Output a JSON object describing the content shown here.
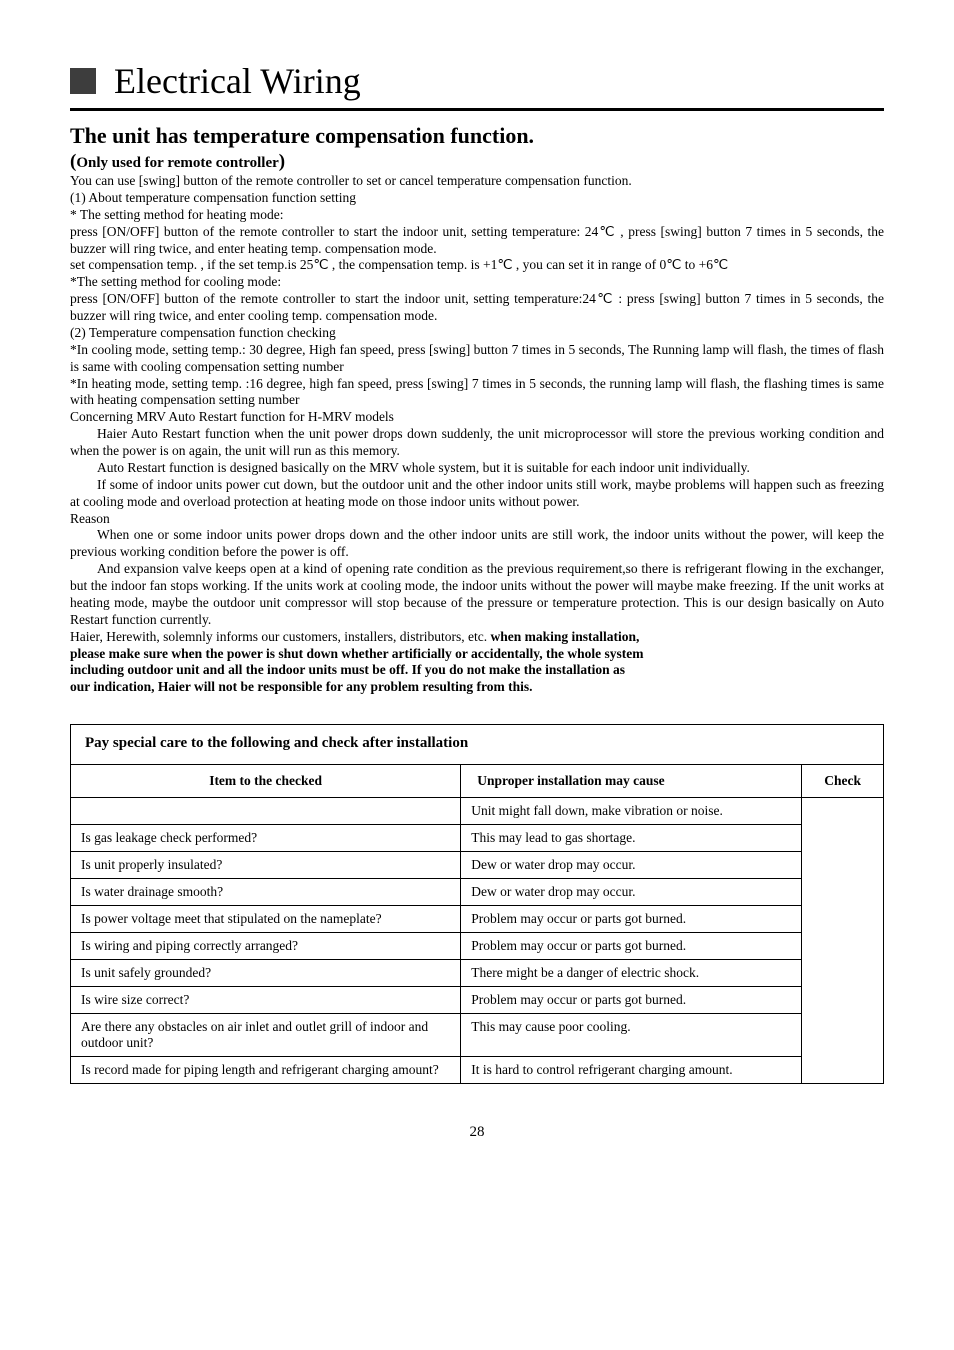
{
  "heading": "Electrical Wiring",
  "subheading": "The unit has temperature compensation  function.",
  "subnote_open": "(",
  "subnote_text": "Only used for remote controller",
  "subnote_close": ")",
  "para": {
    "p01": "You  can  use  [swing]  button of the  remote controller to set or cancel temperature  compensation   function.",
    "p02": " (1)  About  temperature compensation  function  setting",
    "p03": "* The  setting  method for heating   mode:",
    "p04": "press [ON/OFF] button of the  remote  controller to start the indoor unit, setting temperature: 24℃ , press [swing]  button 7 times in 5 seconds, the buzzer will ring  twice, and enter heating temp. compensation mode.",
    "p05": "set compensation temp. , if the set temp.is 25℃ , the compensation temp. is +1℃ , you can set it in range of 0℃  to +6℃",
    "p06": "*The  setting  method  for cooling mode:",
    "p07": "press [ON/OFF]  button  of  the  remote  controller to start  the indoor unit, setting temperature:24℃ : press [swing] button 7 times in 5 seconds, the buzzer will ring twice, and enter cooling temp. compensation mode.",
    "p08": "(2)  Temperature  compensation  function  checking",
    "p09": "*In cooling mode, setting temp.: 30 degree, High fan speed, press [swing] button 7 times in 5 seconds, The Running lamp will flash, the times of flash is same with cooling compensation setting number",
    "p10": "*In heating mode, setting temp. :16 degree, high fan speed, press [swing] 7 times in 5 seconds, the running lamp will flash, the flashing times is same with heating compensation setting number",
    "p11": "Concerning MRV Auto Restart function for H-MRV models",
    "p12": "Haier Auto Restart function when the unit power drops down suddenly, the unit microprocessor will store the previous working condition and when the power is on again, the unit will run as this memory.",
    "p13": "Auto Restart function is designed basically on the MRV whole system, but it is suitable for each indoor unit individually.",
    "p14": "If some of indoor units power cut down, but the outdoor unit and the other indoor units still work, maybe problems will happen such as freezing at cooling mode and overload protection at heating mode on those indoor units without power.",
    "p15": "Reason",
    "p16": "When one or some indoor units power drops down and the other indoor units are still work, the indoor units without the power, will keep the previous working condition before the power is off.",
    "p17": "And expansion valve keeps open at a kind of opening rate condition as the previous requirement,so there is refrigerant flowing in the exchanger, but the indoor fan stops working. If the units work at cooling mode, the indoor units without the power will maybe make freezing. If the unit works at heating mode, maybe the outdoor unit compressor will stop because of the pressure or temperature protection. This is our design basically on Auto Restart function currently.",
    "p18a": "Haier, Herewith, solemnly informs our customers, installers, distributors, etc. ",
    "p18b": "when making installation,",
    "p19": "please make sure when the power is shut down whether artificially or accidentally, the whole system",
    "p20": " including outdoor unit and all the indoor units must be off. If you do not make the installation as",
    "p21": "our indication, Haier will not be responsible for any problem resulting from this."
  },
  "table": {
    "caption": "Pay special care to the following and check after installation",
    "head_item": "Item to the checked",
    "head_cause": "Unproper installation may cause",
    "head_check": "Check",
    "rows": [
      {
        "item": "",
        "cause": "Unit might fall down, make vibration or noise."
      },
      {
        "item": "Is gas leakage check performed?",
        "cause": "This may lead to gas shortage."
      },
      {
        "item": "Is unit properly insulated?",
        "cause": "Dew or water drop may occur."
      },
      {
        "item": "Is water drainage smooth?",
        "cause": "Dew or water drop may occur."
      },
      {
        "item": "Is power voltage meet that stipulated on the nameplate?",
        "cause": "Problem may occur or parts got burned."
      },
      {
        "item": "Is wiring and piping correctly arranged?",
        "cause": "Problem may occur or parts got burned."
      },
      {
        "item": "Is unit safely grounded?",
        "cause": "There might be a danger of electric shock."
      },
      {
        "item": "Is wire size correct?",
        "cause": "Problem may occur or parts got burned."
      },
      {
        "item": "Are there any obstacles on air inlet and outlet grill of indoor and outdoor unit?",
        "cause": "This may cause poor cooling."
      },
      {
        "item": "Is record made for piping length and refrigerant charging amount?",
        "cause": "It is hard to control refrigerant charging amount."
      }
    ]
  },
  "page_number": "28"
}
